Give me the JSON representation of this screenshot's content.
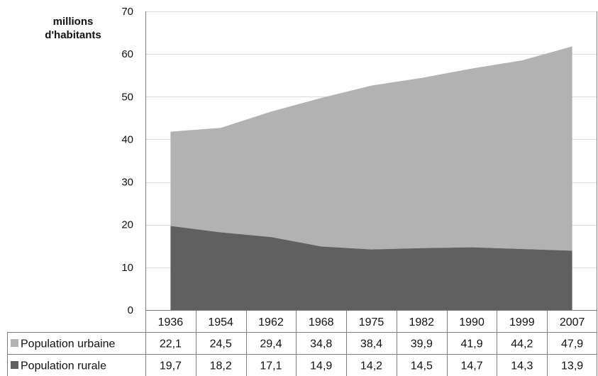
{
  "chart_data": {
    "type": "area",
    "unit_label_lines": [
      "millions",
      "d'habitants"
    ],
    "categories": [
      "1936",
      "1954",
      "1962",
      "1968",
      "1975",
      "1982",
      "1990",
      "1999",
      "2007"
    ],
    "ylim": [
      0,
      70
    ],
    "yticks": [
      0,
      10,
      20,
      30,
      40,
      50,
      60,
      70
    ],
    "stacked": true,
    "grid": true,
    "series": [
      {
        "name": "Population urbaine",
        "values": [
          22.1,
          24.5,
          29.4,
          34.8,
          38.4,
          39.9,
          41.9,
          44.2,
          47.9
        ],
        "display_values": [
          "22,1",
          "24,5",
          "29,4",
          "34,8",
          "38,4",
          "39,9",
          "41,9",
          "44,2",
          "47,9"
        ],
        "color": "#b2b2b2"
      },
      {
        "name": "Population rurale",
        "values": [
          19.7,
          18.2,
          17.1,
          14.9,
          14.2,
          14.5,
          14.7,
          14.3,
          13.9
        ],
        "display_values": [
          "19,7",
          "18,2",
          "17,1",
          "14,9",
          "14,2",
          "14,5",
          "14,7",
          "14,3",
          "13,9"
        ],
        "color": "#606060"
      }
    ]
  }
}
